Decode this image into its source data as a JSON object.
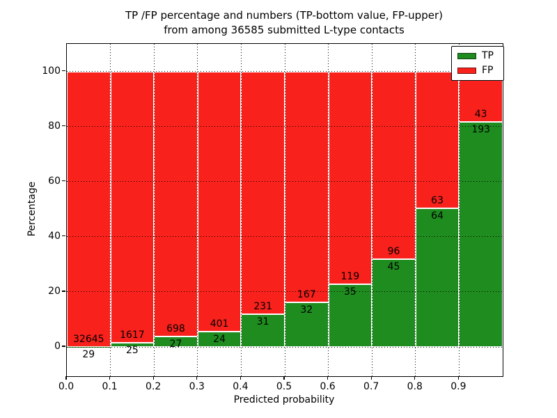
{
  "title": {
    "line1": "TP /FP percentage and numbers (TP-bottom value, FP-upper)",
    "line2": "from among 36585 submitted L-type contacts"
  },
  "axes": {
    "xlabel": "Predicted probability",
    "ylabel": "Percentage",
    "x_tick_labels": [
      "0.0",
      "0.1",
      "0.2",
      "0.3",
      "0.4",
      "0.5",
      "0.6",
      "0.7",
      "0.8",
      "0.9"
    ],
    "y_tick_labels": [
      "0",
      "20",
      "40",
      "60",
      "80",
      "100"
    ],
    "y_tick_values": [
      0,
      20,
      40,
      60,
      80,
      100
    ],
    "ylim": [
      -10.6,
      110.0
    ],
    "xlim": [
      0.0,
      1.0
    ],
    "grid": "dotted black, drawn above bars"
  },
  "legend": {
    "position": "upper right",
    "items": [
      {
        "label": "TP",
        "color": "#1f8c1f"
      },
      {
        "label": "FP",
        "color": "#f8211c"
      }
    ]
  },
  "colors": {
    "tp_green": "#1f8c1f",
    "fp_red": "#f8211c",
    "bar_edge": "#ffffff",
    "text": "#000000",
    "background": "#ffffff"
  },
  "chart_data": {
    "type": "bar",
    "stacked": true,
    "normalized": "each bar scaled to 100%; green height = TP/(TP+FP)*100",
    "title": "TP /FP percentage and numbers (TP-bottom value, FP-upper) from among 36585 submitted L-type contacts",
    "xlabel": "Predicted probability",
    "ylabel": "Percentage",
    "total_submitted": 36585,
    "bin_width": 0.1,
    "bin_starts": [
      0.0,
      0.1,
      0.2,
      0.3,
      0.4,
      0.5,
      0.6,
      0.7,
      0.8,
      0.9
    ],
    "series": [
      {
        "name": "TP",
        "color": "#1f8c1f",
        "values": [
          29,
          25,
          27,
          24,
          31,
          32,
          35,
          45,
          64,
          193
        ]
      },
      {
        "name": "FP",
        "color": "#f8211c",
        "values": [
          32645,
          1617,
          698,
          401,
          231,
          167,
          119,
          96,
          63,
          43
        ]
      }
    ],
    "tp_percent": [
      0.09,
      1.52,
      3.72,
      5.65,
      11.83,
      16.08,
      22.73,
      31.91,
      50.39,
      81.78
    ],
    "bar_labels": {
      "fp_upper": [
        "32645",
        "1617",
        "698",
        "401",
        "231",
        "167",
        "119",
        "96",
        "63",
        "43"
      ],
      "tp_bottom": [
        "29",
        "25",
        "27",
        "24",
        "31",
        "32",
        "35",
        "45",
        "64",
        "193"
      ]
    }
  }
}
